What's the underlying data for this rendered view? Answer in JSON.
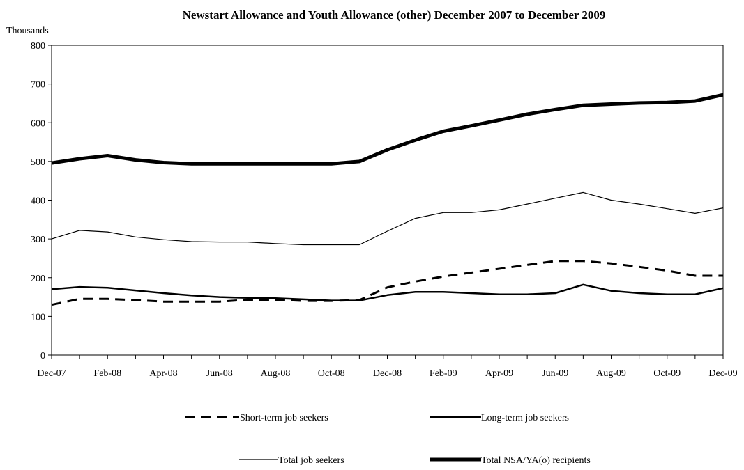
{
  "chart_data": {
    "type": "line",
    "title": "Newstart Allowance and Youth Allowance (other) December 2007 to December 2009",
    "y_unit_label": "Thousands",
    "ylim": [
      0,
      800
    ],
    "y_ticks": [
      0,
      100,
      200,
      300,
      400,
      500,
      600,
      700,
      800
    ],
    "x_tick_labels": [
      "Dec-07",
      "Feb-08",
      "Apr-08",
      "Jun-08",
      "Aug-08",
      "Oct-08",
      "Dec-08",
      "Feb-09",
      "Apr-09",
      "Jun-09",
      "Aug-09",
      "Oct-09",
      "Dec-09"
    ],
    "x": [
      "Dec-07",
      "Jan-08",
      "Feb-08",
      "Mar-08",
      "Apr-08",
      "May-08",
      "Jun-08",
      "Jul-08",
      "Aug-08",
      "Sep-08",
      "Oct-08",
      "Nov-08",
      "Dec-08",
      "Jan-09",
      "Feb-09",
      "Mar-09",
      "Apr-09",
      "May-09",
      "Jun-09",
      "Jul-09",
      "Aug-09",
      "Sep-09",
      "Oct-09",
      "Nov-09",
      "Dec-09"
    ],
    "grid": false,
    "legend_position": "bottom",
    "series": [
      {
        "name": "Short-term job seekers",
        "style": "dashed",
        "values": [
          130,
          145,
          145,
          142,
          138,
          138,
          138,
          143,
          143,
          140,
          140,
          142,
          175,
          190,
          203,
          213,
          223,
          233,
          243,
          243,
          237,
          228,
          218,
          205,
          205
        ]
      },
      {
        "name": "Long-term job seekers",
        "style": "solid",
        "values": [
          170,
          176,
          174,
          167,
          160,
          154,
          150,
          148,
          147,
          144,
          141,
          141,
          155,
          163,
          163,
          160,
          157,
          157,
          160,
          182,
          166,
          160,
          157,
          157,
          173
        ]
      },
      {
        "name": "Total job seekers",
        "style": "thin",
        "values": [
          300,
          322,
          318,
          305,
          298,
          293,
          292,
          292,
          288,
          285,
          285,
          285,
          320,
          353,
          368,
          368,
          375,
          390,
          405,
          420,
          400,
          390,
          378,
          366,
          380
        ]
      },
      {
        "name": "Total NSA/YA(o) recipients",
        "style": "thick",
        "values": [
          496,
          507,
          515,
          504,
          497,
          494,
          494,
          494,
          494,
          494,
          494,
          500,
          530,
          555,
          578,
          592,
          607,
          622,
          634,
          645,
          648,
          651,
          652,
          656,
          672
        ]
      }
    ]
  }
}
